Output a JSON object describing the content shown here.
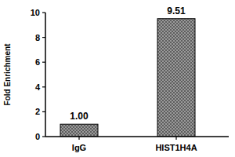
{
  "chart_data": {
    "type": "bar",
    "categories": [
      "IgG",
      "HIST1H4A"
    ],
    "values": [
      1.0,
      9.51
    ],
    "value_labels": [
      "1.00",
      "9.51"
    ],
    "data_labels": true,
    "color": "#9a9a9a",
    "ylabel": "Fold Enrichment",
    "ylim": [
      0,
      10
    ],
    "yticks": [
      0,
      2,
      4,
      6,
      8,
      10
    ],
    "grid": false
  }
}
